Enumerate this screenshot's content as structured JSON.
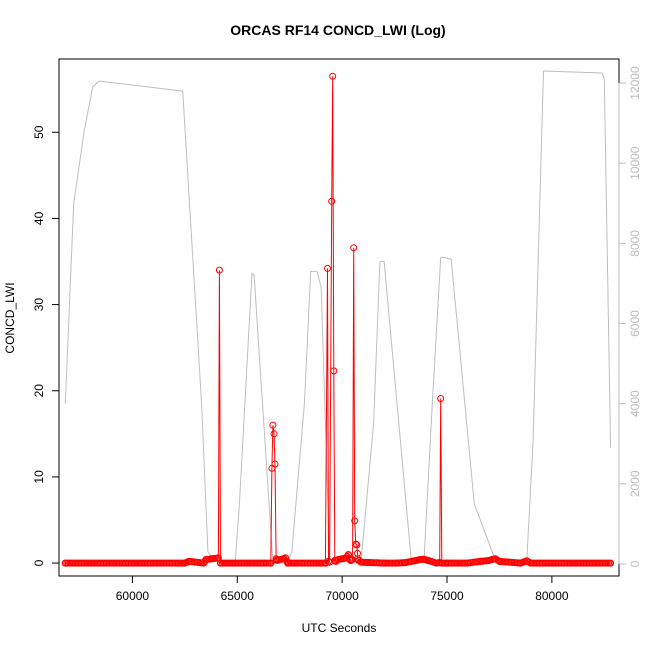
{
  "chart_data": {
    "type": "line",
    "title": "ORCAS RF14 CONCD_LWI (Log)",
    "xlabel": "UTC Seconds",
    "ylabel": "CONCD_LWI",
    "xlim": [
      56500,
      83200
    ],
    "ylim": [
      -1.5,
      58.5
    ],
    "y2lim": [
      -300,
      12600
    ],
    "x_ticks": [
      60000,
      65000,
      70000,
      75000,
      80000
    ],
    "y_ticks": [
      0,
      10,
      20,
      30,
      40,
      50
    ],
    "y2_ticks": [
      0,
      2000,
      4000,
      6000,
      8000,
      10000,
      12000
    ],
    "grid": false,
    "colors": {
      "concd": "#ff0000",
      "secondary": "#bebebe",
      "axis": "#000000",
      "right_axis": "#bdbdbd"
    },
    "secondary_series": {
      "axis": "right",
      "x": [
        56800,
        57200,
        57700,
        58100,
        58400,
        62400,
        63300,
        63600,
        63900,
        64900,
        65100,
        65700,
        65800,
        66700,
        67400,
        67600,
        68200,
        68500,
        68800,
        69000,
        69400,
        70000,
        70900,
        71500,
        71800,
        72000,
        73300,
        73900,
        74300,
        74700,
        74900,
        75200,
        76300,
        77300,
        77800,
        78500,
        78800,
        79100,
        79600,
        82400,
        82500,
        82800
      ],
      "y": [
        4000,
        9000,
        10800,
        11900,
        12050,
        11800,
        4000,
        300,
        100,
        50,
        1500,
        7250,
        7200,
        50,
        50,
        300,
        4000,
        7300,
        7300,
        6900,
        100,
        50,
        50,
        3500,
        7550,
        7550,
        50,
        50,
        4000,
        7650,
        7650,
        7600,
        1500,
        100,
        50,
        50,
        50,
        3000,
        12300,
        12250,
        12100,
        2900
      ]
    },
    "series": [
      {
        "axis": "left",
        "x": [
          56800,
          62500,
          62700,
          63400,
          63500,
          63800,
          64100,
          64150,
          64200,
          66600,
          66650,
          66700,
          66750,
          66800,
          66850,
          66900,
          67200,
          67300,
          67400,
          69200,
          69300,
          69350,
          69400,
          69500,
          69550,
          69600,
          69650,
          69700,
          69800,
          70200,
          70300,
          70400,
          70500,
          70550,
          70600,
          70650,
          70700,
          70750,
          70800,
          70900,
          72000,
          72600,
          73000,
          73500,
          73700,
          73900,
          74100,
          74500,
          74650,
          74700,
          74750,
          75000,
          76000,
          76600,
          77000,
          77200,
          77300,
          77500,
          78500,
          78800,
          79000,
          82800
        ],
        "y": [
          0,
          0,
          0.2,
          0,
          0.4,
          0.5,
          0.6,
          34,
          0,
          0,
          11,
          16,
          15,
          11.5,
          0.5,
          0.3,
          0.5,
          0.6,
          0,
          0,
          34.2,
          0.2,
          0.1,
          42,
          56.5,
          22.3,
          0.3,
          0.2,
          0.4,
          0.6,
          1.0,
          0.3,
          0.4,
          36.6,
          4.9,
          2.2,
          2.1,
          0.5,
          0.3,
          0.1,
          0,
          0,
          0.05,
          0.3,
          0.4,
          0.45,
          0.3,
          0,
          0.05,
          19.1,
          0,
          0,
          0,
          0.2,
          0.3,
          0.45,
          0.5,
          0.2,
          0,
          0.25,
          0,
          0
        ]
      }
    ]
  }
}
